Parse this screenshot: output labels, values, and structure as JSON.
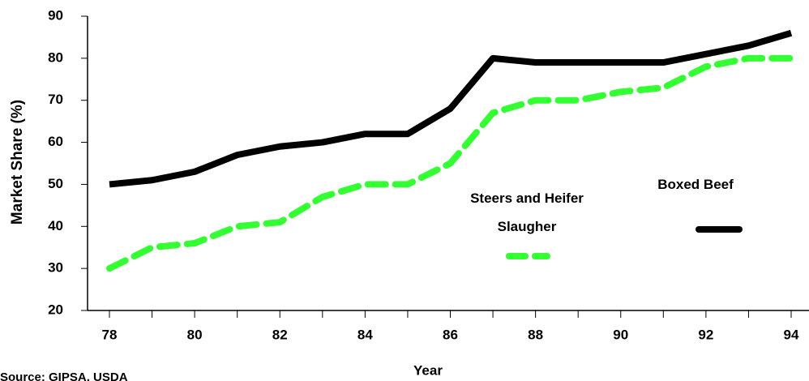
{
  "chart_data": {
    "type": "line",
    "x_label": "Year",
    "y_label": "Market Share (%)",
    "source": "Source: GIPSA, USDA",
    "categories": [
      "78",
      null,
      "80",
      null,
      "82",
      null,
      "84",
      null,
      "86",
      null,
      "88",
      null,
      "90",
      null,
      "92",
      null,
      "94"
    ],
    "series": [
      {
        "name": "Boxed Beef",
        "color": "#000000",
        "dashed": false,
        "values": [
          50,
          51,
          53,
          57,
          59,
          60,
          62,
          62,
          68,
          80,
          79,
          79,
          79,
          79,
          81,
          83,
          86
        ]
      },
      {
        "name": "Steers and Heifer Slaugher",
        "color": "#33ff33",
        "dashed": true,
        "values": [
          30,
          35,
          36,
          40,
          41,
          47,
          50,
          50,
          55,
          67,
          70,
          70,
          72,
          73,
          78,
          80,
          80
        ]
      }
    ],
    "ylim": [
      20,
      90
    ],
    "yticks": [
      20,
      30,
      40,
      50,
      60,
      70,
      80,
      90
    ]
  }
}
